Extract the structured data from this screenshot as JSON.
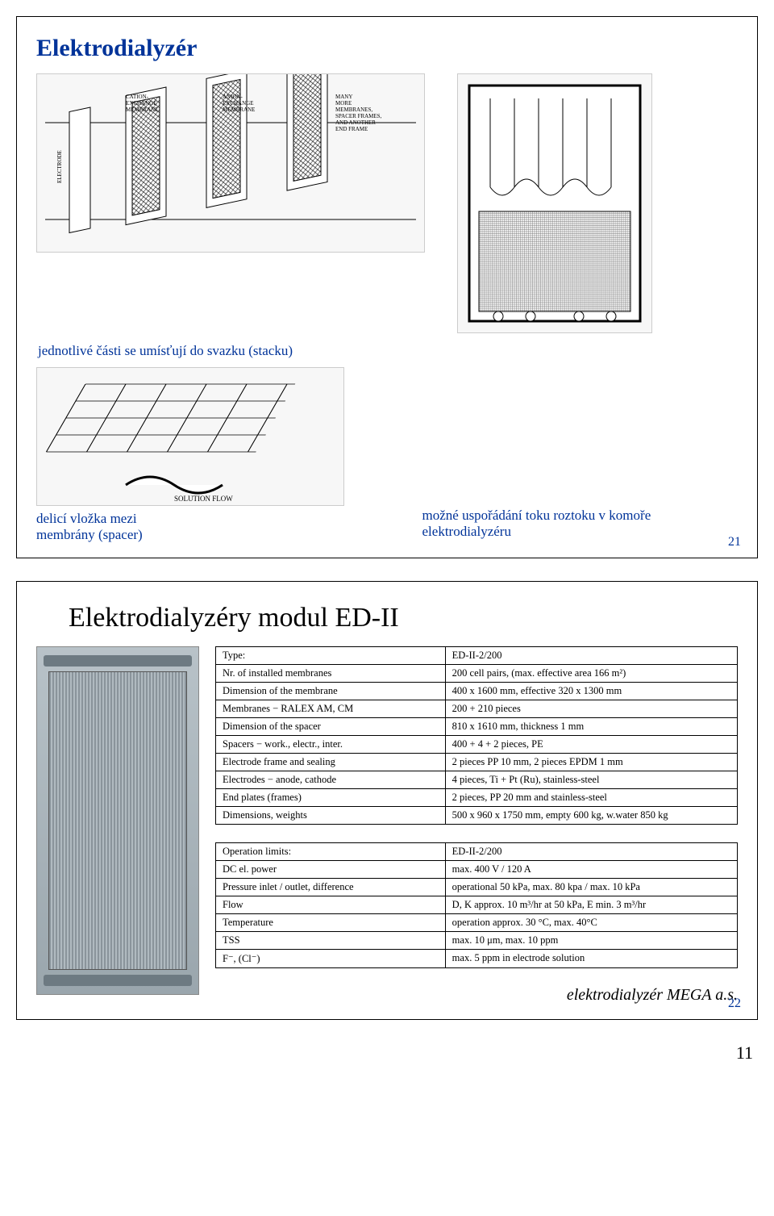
{
  "slide1": {
    "title": "Elektrodialyzér",
    "caption_top": "jednotlivé části se umísťují do svazku (stacku)",
    "caption_left": "delicí vložka mezi membrány (spacer)",
    "caption_right": "možné uspořádání toku roztoku v komoře elektrodialyzéru",
    "pagenum": "21",
    "diag_labels": {
      "electrode": "ELECTRODE",
      "cation": "CATION-\nEXCHANGE\nMEMBRANE",
      "anion": "ANION-\nEXCHANGE\nMEMBRANE",
      "more": "MANY\nMORE\nMEMBRANES,\nSPACER FRAMES,\nAND ANOTHER\nEND FRAME",
      "solution": "SOLUTION FLOW"
    }
  },
  "slide2": {
    "title": "Elektrodialyzéry modul ED-II",
    "table1": {
      "rows": [
        [
          "Type:",
          "ED-II-2/200"
        ],
        [
          "Nr. of installed membranes",
          "200 cell pairs, (max. effective area 166 m²)"
        ],
        [
          "Dimension of the membrane",
          "400 x 1600 mm, effective 320 x 1300 mm"
        ],
        [
          "Membranes − RALEX AM, CM",
          "200 + 210 pieces"
        ],
        [
          "Dimension of the spacer",
          "810 x 1610 mm, thickness 1 mm"
        ],
        [
          "Spacers − work., electr., inter.",
          "400 + 4 + 2 pieces, PE"
        ],
        [
          "Electrode frame and sealing",
          "2 pieces PP 10 mm, 2 pieces EPDM 1 mm"
        ],
        [
          "Electrodes − anode, cathode",
          "4 pieces, Ti + Pt (Ru), stainless-steel"
        ],
        [
          "End plates (frames)",
          "2 pieces, PP 20 mm and stainless-steel"
        ],
        [
          "Dimensions, weights",
          "500 x 960 x 1750 mm, empty 600 kg, w.water 850 kg"
        ]
      ]
    },
    "table2": {
      "rows": [
        [
          "Operation limits:",
          "ED-II-2/200"
        ],
        [
          "DC el. power",
          "max. 400 V / 120 A"
        ],
        [
          "Pressure inlet / outlet, difference",
          "operational 50 kPa, max. 80 kpa / max. 10 kPa"
        ],
        [
          "Flow",
          "D, K approx. 10 m³/hr at 50 kPa, E min. 3 m³/hr"
        ],
        [
          "Temperature",
          "operation approx. 30 °C, max. 40°C"
        ],
        [
          "TSS",
          "max. 10 μm, max. 10 ppm"
        ],
        [
          "F⁻, (Cl⁻)",
          "max. 5 ppm in electrode solution"
        ]
      ]
    },
    "footer": "elektrodialyzér MEGA a.s.",
    "pagenum": "22"
  },
  "outer_pagenum": "11"
}
